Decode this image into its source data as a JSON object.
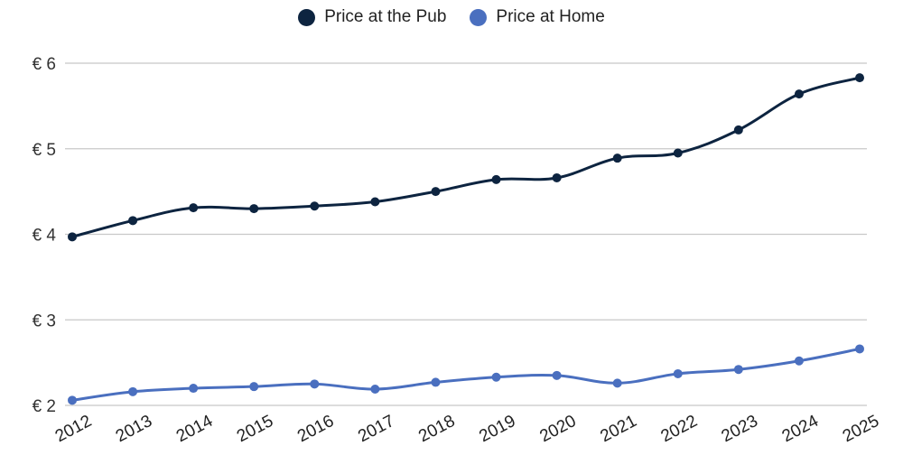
{
  "chart_data": {
    "type": "line",
    "title": "",
    "xlabel": "",
    "ylabel": "",
    "categories": [
      "2012",
      "2013",
      "2014",
      "2015",
      "2016",
      "2017",
      "2018",
      "2019",
      "2020",
      "2021",
      "2022",
      "2023",
      "2024",
      "2025"
    ],
    "series": [
      {
        "name": "Price at the Pub",
        "color": "#0d2440",
        "values": [
          3.97,
          4.16,
          4.31,
          4.3,
          4.33,
          4.38,
          4.5,
          4.64,
          4.66,
          4.89,
          4.95,
          5.22,
          5.64,
          5.83
        ]
      },
      {
        "name": "Price at Home",
        "color": "#4a6fbf",
        "values": [
          2.06,
          2.16,
          2.2,
          2.22,
          2.25,
          2.19,
          2.27,
          2.33,
          2.35,
          2.26,
          2.37,
          2.42,
          2.52,
          2.66
        ]
      }
    ],
    "ylim": [
      2,
      6
    ],
    "yticks": [
      2,
      3,
      4,
      5,
      6
    ],
    "ytick_labels": [
      "€ 2",
      "€ 3",
      "€ 4",
      "€ 5",
      "€ 6"
    ],
    "grid": true,
    "legend_position": "top"
  },
  "legend": {
    "items": [
      {
        "label": "Price at the Pub",
        "color": "#0d2440"
      },
      {
        "label": "Price at Home",
        "color": "#4a6fbf"
      }
    ]
  }
}
